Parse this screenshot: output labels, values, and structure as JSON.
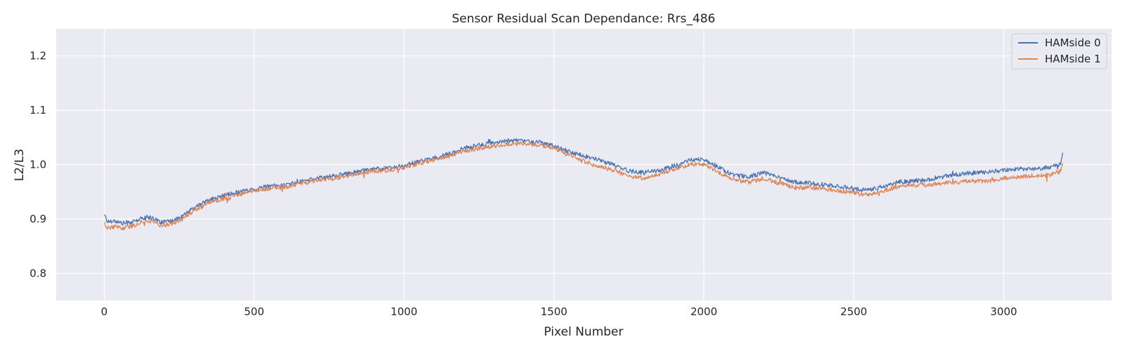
{
  "chart_data": {
    "type": "line",
    "title": "Sensor Residual Scan Dependance: Rrs_486",
    "xlabel": "Pixel Number",
    "ylabel": "L2/L3",
    "xlim": [
      -160,
      3360
    ],
    "ylim": [
      0.75,
      1.25
    ],
    "xticks": [
      0,
      500,
      1000,
      1500,
      2000,
      2500,
      3000
    ],
    "yticks": [
      0.8,
      0.9,
      1.0,
      1.1,
      1.2
    ],
    "xtick_labels": [
      "0",
      "500",
      "1000",
      "1500",
      "2000",
      "2500",
      "3000"
    ],
    "ytick_labels": [
      "0.8",
      "0.9",
      "1.0",
      "1.1",
      "1.2"
    ],
    "grid": true,
    "legend_position": "top-right",
    "series": [
      {
        "name": "HAMside 0",
        "color": "#4c72b0",
        "noise": 0.004,
        "x": [
          0,
          10,
          30,
          60,
          100,
          130,
          160,
          190,
          220,
          260,
          300,
          350,
          400,
          450,
          500,
          550,
          600,
          650,
          700,
          750,
          800,
          850,
          900,
          950,
          1000,
          1050,
          1100,
          1150,
          1200,
          1250,
          1300,
          1350,
          1400,
          1450,
          1500,
          1550,
          1600,
          1650,
          1700,
          1750,
          1800,
          1850,
          1900,
          1950,
          2000,
          2050,
          2100,
          2150,
          2200,
          2250,
          2300,
          2350,
          2400,
          2450,
          2500,
          2550,
          2600,
          2650,
          2700,
          2750,
          2800,
          2850,
          2900,
          2950,
          3000,
          3050,
          3100,
          3150,
          3190,
          3197
        ],
        "y": [
          0.91,
          0.895,
          0.897,
          0.892,
          0.895,
          0.902,
          0.902,
          0.894,
          0.895,
          0.905,
          0.92,
          0.935,
          0.943,
          0.95,
          0.955,
          0.96,
          0.962,
          0.968,
          0.974,
          0.978,
          0.982,
          0.988,
          0.992,
          0.993,
          0.998,
          1.006,
          1.012,
          1.02,
          1.03,
          1.036,
          1.04,
          1.044,
          1.044,
          1.042,
          1.035,
          1.024,
          1.016,
          1.008,
          1.0,
          0.988,
          0.985,
          0.99,
          0.996,
          1.008,
          1.01,
          0.995,
          0.98,
          0.978,
          0.985,
          0.978,
          0.968,
          0.966,
          0.963,
          0.96,
          0.956,
          0.953,
          0.96,
          0.968,
          0.97,
          0.972,
          0.978,
          0.982,
          0.985,
          0.986,
          0.99,
          0.992,
          0.992,
          0.995,
          1.0,
          1.022
        ]
      },
      {
        "name": "HAMside 1",
        "color": "#dd8452",
        "noise": 0.004,
        "x": [
          0,
          10,
          30,
          60,
          100,
          130,
          160,
          190,
          220,
          260,
          300,
          350,
          400,
          450,
          500,
          550,
          600,
          650,
          700,
          750,
          800,
          850,
          900,
          950,
          1000,
          1050,
          1100,
          1150,
          1200,
          1250,
          1300,
          1350,
          1400,
          1450,
          1500,
          1550,
          1600,
          1650,
          1700,
          1750,
          1800,
          1850,
          1900,
          1950,
          2000,
          2050,
          2100,
          2150,
          2200,
          2250,
          2300,
          2350,
          2400,
          2450,
          2500,
          2550,
          2600,
          2650,
          2700,
          2750,
          2800,
          2850,
          2900,
          2950,
          3000,
          3050,
          3100,
          3150,
          3190,
          3197
        ],
        "y": [
          0.895,
          0.882,
          0.886,
          0.883,
          0.888,
          0.896,
          0.896,
          0.888,
          0.89,
          0.9,
          0.915,
          0.93,
          0.938,
          0.945,
          0.952,
          0.956,
          0.958,
          0.964,
          0.97,
          0.974,
          0.978,
          0.984,
          0.988,
          0.99,
          0.995,
          1.002,
          1.008,
          1.015,
          1.025,
          1.03,
          1.034,
          1.038,
          1.038,
          1.036,
          1.03,
          1.018,
          1.006,
          0.996,
          0.99,
          0.978,
          0.975,
          0.982,
          0.99,
          1.0,
          1.0,
          0.985,
          0.972,
          0.968,
          0.975,
          0.966,
          0.958,
          0.958,
          0.955,
          0.952,
          0.948,
          0.944,
          0.952,
          0.96,
          0.962,
          0.963,
          0.966,
          0.968,
          0.97,
          0.97,
          0.975,
          0.978,
          0.98,
          0.98,
          0.988,
          1.0
        ]
      }
    ]
  }
}
